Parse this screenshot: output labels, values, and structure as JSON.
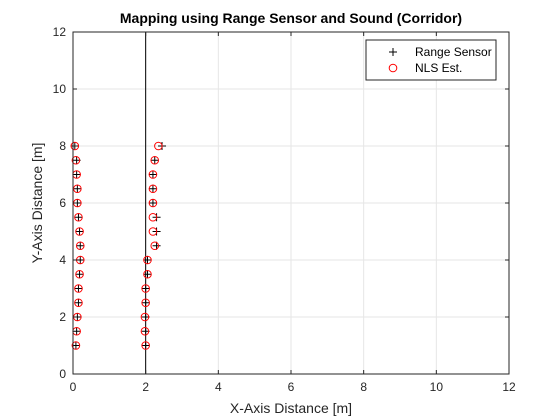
{
  "chart_data": {
    "type": "scatter",
    "title": "Mapping using Range Sensor and Sound (Corridor)",
    "xlabel": "X-Axis Distance [m]",
    "ylabel": "Y-Axis Distance [m]",
    "xlim": [
      0,
      12
    ],
    "ylim": [
      0,
      12
    ],
    "xticks": [
      0,
      2,
      4,
      6,
      8,
      10,
      12
    ],
    "yticks": [
      0,
      2,
      4,
      6,
      8,
      10,
      12
    ],
    "grid": true,
    "legend_position": "top-right",
    "corridor_walls": [
      {
        "x": [
          0,
          0,
          2,
          2
        ],
        "y": [
          0,
          12,
          12,
          0
        ]
      }
    ],
    "series": [
      {
        "name": "Range Sensor",
        "marker": "plus",
        "color": "#000000",
        "points": [
          [
            0.05,
            8.0
          ],
          [
            0.1,
            7.5
          ],
          [
            0.1,
            7.0
          ],
          [
            0.12,
            6.5
          ],
          [
            0.12,
            6.0
          ],
          [
            0.15,
            5.5
          ],
          [
            0.18,
            5.0
          ],
          [
            0.2,
            4.5
          ],
          [
            0.2,
            4.0
          ],
          [
            0.18,
            3.5
          ],
          [
            0.15,
            3.0
          ],
          [
            0.15,
            2.5
          ],
          [
            0.12,
            2.0
          ],
          [
            0.1,
            1.5
          ],
          [
            0.08,
            1.0
          ],
          [
            2.45,
            8.0
          ],
          [
            2.25,
            7.5
          ],
          [
            2.2,
            7.0
          ],
          [
            2.2,
            6.5
          ],
          [
            2.2,
            6.0
          ],
          [
            2.3,
            5.5
          ],
          [
            2.3,
            5.0
          ],
          [
            2.3,
            4.5
          ],
          [
            2.05,
            4.0
          ],
          [
            2.05,
            3.5
          ],
          [
            2.0,
            3.0
          ],
          [
            2.0,
            2.5
          ],
          [
            2.0,
            2.0
          ],
          [
            2.0,
            1.5
          ],
          [
            2.0,
            1.0
          ]
        ]
      },
      {
        "name": "NLS Est.",
        "marker": "circle",
        "color": "#ff0000",
        "points": [
          [
            0.05,
            8.0
          ],
          [
            0.08,
            7.5
          ],
          [
            0.1,
            7.0
          ],
          [
            0.12,
            6.5
          ],
          [
            0.12,
            6.0
          ],
          [
            0.15,
            5.5
          ],
          [
            0.18,
            5.0
          ],
          [
            0.2,
            4.5
          ],
          [
            0.2,
            4.0
          ],
          [
            0.18,
            3.5
          ],
          [
            0.15,
            3.0
          ],
          [
            0.15,
            2.5
          ],
          [
            0.12,
            2.0
          ],
          [
            0.1,
            1.5
          ],
          [
            0.08,
            1.0
          ],
          [
            2.35,
            8.0
          ],
          [
            2.25,
            7.5
          ],
          [
            2.2,
            7.0
          ],
          [
            2.2,
            6.5
          ],
          [
            2.2,
            6.0
          ],
          [
            2.2,
            5.5
          ],
          [
            2.2,
            5.0
          ],
          [
            2.25,
            4.5
          ],
          [
            2.05,
            4.0
          ],
          [
            2.05,
            3.5
          ],
          [
            2.0,
            3.0
          ],
          [
            2.0,
            2.5
          ],
          [
            1.98,
            2.0
          ],
          [
            1.98,
            1.5
          ],
          [
            2.0,
            1.0
          ]
        ]
      }
    ]
  }
}
